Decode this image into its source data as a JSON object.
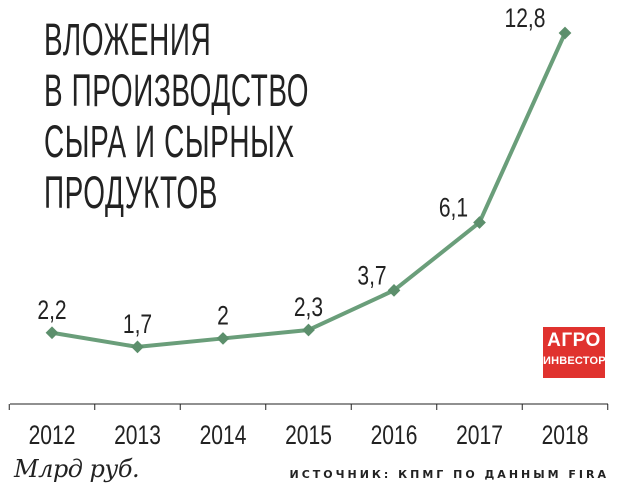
{
  "title_lines": [
    "ВЛОЖЕНИЯ",
    "В ПРОИЗВОДСТВО",
    "СЫРА И СЫРНЫХ",
    "ПРОДУКТОВ"
  ],
  "unit": "Млрд руб.",
  "source": "ИСТОЧНИК: КПМГ ПО ДАННЫМ FIRA",
  "logo": {
    "line1": "АГРО",
    "line2": "ИНВЕСТОР",
    "color": "#e0322e"
  },
  "colors": {
    "line": "#6a9e7a",
    "marker": "#5c8f6c",
    "text": "#222222"
  },
  "chart_data": {
    "type": "line",
    "title": "ВЛОЖЕНИЯ В ПРОИЗВОДСТВО СЫРА И СЫРНЫХ ПРОДУКТОВ",
    "categories": [
      "2012",
      "2013",
      "2014",
      "2015",
      "2016",
      "2017",
      "2018"
    ],
    "values": [
      2.2,
      1.7,
      2,
      2.3,
      3.7,
      6.1,
      12.8
    ],
    "value_labels": [
      "2,2",
      "1,7",
      "2",
      "2,3",
      "3,7",
      "6,1",
      "12,8"
    ],
    "xlabel": "",
    "ylabel": "",
    "ylim": [
      0,
      14
    ],
    "grid": false,
    "legend": "none"
  }
}
